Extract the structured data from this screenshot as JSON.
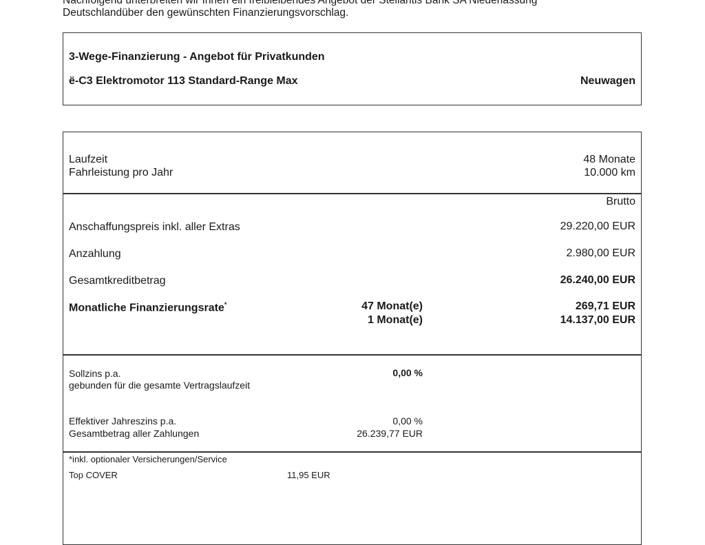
{
  "intro": {
    "line1": "Nachfolgend unterbreiten wir Ihnen ein freibleibendes Angebot der Stellantis Bank SA Niederlassung",
    "line2": "Deutschlandüber den gewünschten Finanzierungsvorschlag."
  },
  "offer": {
    "title": "3-Wege-Finanzierung - Angebot für Privatkunden",
    "model": "ë-C3 Elektromotor 113 Standard-Range Max",
    "condition": "Neuwagen"
  },
  "terms": {
    "laufzeit_label": "Laufzeit",
    "laufzeit_value": "48  Monate",
    "fahrleistung_label": "Fahrleistung pro Jahr",
    "fahrleistung_value": "10.000  km"
  },
  "amounts": {
    "column_header": "Brutto",
    "anschaffungspreis_label": "Anschaffungspreis inkl. aller Extras",
    "anschaffungspreis_value": "29.220,00 EUR",
    "anzahlung_label": "Anzahlung",
    "anzahlung_value": "2.980,00 EUR",
    "gesamtkredit_label": "Gesamtkreditbetrag",
    "gesamtkredit_value": "26.240,00 EUR",
    "rate_label": "Monatliche Finanzierungsrate",
    "rate_footnote_mark": "*",
    "rate_months_1": "47 Monat(e)",
    "rate_value_1": "269,71 EUR",
    "rate_months_2": "1 Monat(e)",
    "rate_value_2": "14.137,00 EUR"
  },
  "interest": {
    "sollzins_label": "Sollzins p.a.",
    "sollzins_sub": "gebunden für die gesamte Vertragslaufzeit",
    "sollzins_value": "0,00 %",
    "effektiv_label": "Effektiver Jahreszins p.a.",
    "effektiv_value": "0,00 %",
    "gesamtbetrag_label": "Gesamtbetrag aller Zahlungen",
    "gesamtbetrag_value": "26.239,77 EUR"
  },
  "extras": {
    "footnote": "*inkl. optionaler Versicherungen/Service",
    "item_label": "Top COVER",
    "item_value": "11,95 EUR"
  }
}
